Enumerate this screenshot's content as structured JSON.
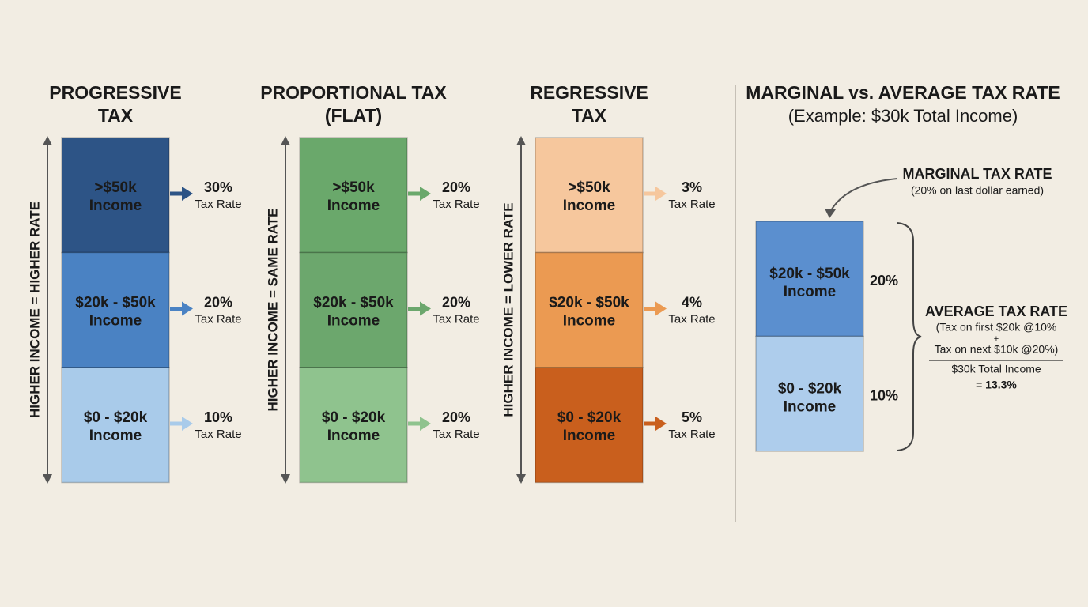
{
  "panels": [
    {
      "title": [
        "PROGRESSIVE",
        "TAX"
      ],
      "axis_label": "HIGHER INCOME = HIGHER RATE",
      "bands": [
        {
          "label": [
            ">$50k",
            "Income"
          ],
          "rate": "30%",
          "rate_label": "Tax Rate",
          "color": "#2d5486",
          "text_color": "#ffffff"
        },
        {
          "label": [
            "$20k - $50k",
            "Income"
          ],
          "rate": "20%",
          "rate_label": "Tax Rate",
          "color": "#4a82c3",
          "text_color": "#ffffff"
        },
        {
          "label": [
            "$0 - $20k",
            "Income"
          ],
          "rate": "10%",
          "rate_label": "Tax Rate",
          "color": "#a9cbea",
          "text_color": "#1a1a1a"
        }
      ]
    },
    {
      "title": [
        "PROPORTIONAL TAX",
        "(FLAT)"
      ],
      "axis_label": "HIGHER INCOME = SAME RATE",
      "bands": [
        {
          "label": [
            ">$50k",
            "Income"
          ],
          "rate": "20%",
          "rate_label": "Tax Rate",
          "color": "#6aa86b",
          "text_color": "#ffffff"
        },
        {
          "label": [
            "$20k - $50k",
            "Income"
          ],
          "rate": "20%",
          "rate_label": "Tax Rate",
          "color": "#6ca76d",
          "text_color": "#ffffff"
        },
        {
          "label": [
            "$0 - $20k",
            "Income"
          ],
          "rate": "20%",
          "rate_label": "Tax Rate",
          "color": "#8fc38e",
          "text_color": "#ffffff"
        }
      ]
    },
    {
      "title": [
        "REGRESSIVE",
        "TAX"
      ],
      "axis_label": "HIGHER INCOME = LOWER RATE",
      "bands": [
        {
          "label": [
            ">$50k",
            "Income"
          ],
          "rate": "3%",
          "rate_label": "Tax Rate",
          "color": "#f6c79d",
          "text_color": "#1a1a1a"
        },
        {
          "label": [
            "$20k - $50k",
            "Income"
          ],
          "rate": "4%",
          "rate_label": "Tax Rate",
          "color": "#eb9a52",
          "text_color": "#ffffff"
        },
        {
          "label": [
            "$0 - $20k",
            "Income"
          ],
          "rate": "5%",
          "rate_label": "Tax Rate",
          "color": "#c95f1d",
          "text_color": "#ffffff"
        }
      ]
    }
  ],
  "comparison": {
    "title": "MARGINAL vs. AVERAGE TAX RATE",
    "subtitle": "(Example: $30k Total Income)",
    "marginal_title": "MARGINAL TAX RATE",
    "marginal_note": "(20% on last dollar earned)",
    "bands": [
      {
        "label": [
          "$20k - $50k",
          "Income"
        ],
        "rate": "20%",
        "color": "#5b8fcf",
        "text_color": "#ffffff"
      },
      {
        "label": [
          "$0 - $20k",
          "Income"
        ],
        "rate": "10%",
        "color": "#aecdec",
        "text_color": "#1a1a1a"
      }
    ],
    "average_title": "AVERAGE TAX RATE",
    "formula_lines": [
      "(Tax on first $20k @10%",
      "+",
      "Tax on next $10k @20%)"
    ],
    "denominator": "$30k Total Income",
    "result": "= 13.3%"
  }
}
